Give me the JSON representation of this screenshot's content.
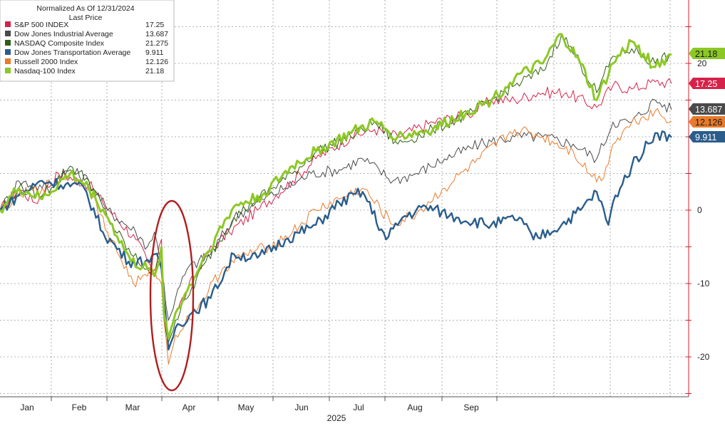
{
  "chart_data": {
    "type": "line",
    "legend": {
      "title_line1": "Normalized As Of 12/31/2024",
      "title_line2": "Last Price",
      "placement": "top-left"
    },
    "x_axis": {
      "months": [
        "Jan",
        "Feb",
        "Mar",
        "Apr",
        "May",
        "Jun",
        "Jul",
        "Aug",
        "Sep"
      ],
      "year_label": "2025"
    },
    "y_axis": {
      "ticks": [
        20,
        0,
        -10,
        -20
      ],
      "tick_labels": [
        "20",
        "0",
        "-10",
        "-20"
      ],
      "ylim": [
        -25,
        28
      ],
      "position": "right"
    },
    "grid": true,
    "highlight_annotation": {
      "shape": "ellipse",
      "color": "#b01e1e",
      "around": "early April drop"
    },
    "series": [
      {
        "name": "S&P 500 INDEX",
        "last_price": "17.25",
        "color": "#d6224a",
        "width": 1,
        "keypoints": [
          [
            0,
            0
          ],
          [
            8,
            3
          ],
          [
            15,
            1
          ],
          [
            25,
            5
          ],
          [
            38,
            3.5
          ],
          [
            44,
            1
          ],
          [
            58,
            -4
          ],
          [
            63,
            -7
          ],
          [
            66,
            -9
          ],
          [
            69,
            -4
          ],
          [
            70,
            -13
          ],
          [
            72,
            -17
          ],
          [
            75,
            -14
          ],
          [
            80,
            -11
          ],
          [
            88,
            -6
          ],
          [
            98,
            -3
          ],
          [
            110,
            0
          ],
          [
            125,
            4
          ],
          [
            135,
            7
          ],
          [
            150,
            10
          ],
          [
            160,
            11
          ],
          [
            170,
            10
          ],
          [
            185,
            12
          ],
          [
            200,
            13
          ],
          [
            210,
            15
          ],
          [
            220,
            15
          ],
          [
            230,
            16
          ],
          [
            242,
            16
          ],
          [
            255,
            14
          ],
          [
            262,
            17
          ],
          [
            270,
            16.5
          ],
          [
            280,
            17.5
          ],
          [
            287,
            17.25
          ]
        ]
      },
      {
        "name": "Dow Jones Industrial Average",
        "last_price": "13.687",
        "color": "#4a4a4a",
        "width": 1,
        "keypoints": [
          [
            0,
            0
          ],
          [
            8,
            4
          ],
          [
            18,
            3
          ],
          [
            30,
            5.5
          ],
          [
            38,
            4
          ],
          [
            46,
            0
          ],
          [
            58,
            -3
          ],
          [
            63,
            -5
          ],
          [
            66,
            -3
          ],
          [
            68,
            -6
          ],
          [
            70,
            -10
          ],
          [
            72,
            -15
          ],
          [
            75,
            -12
          ],
          [
            80,
            -8
          ],
          [
            90,
            -6
          ],
          [
            100,
            -1
          ],
          [
            112,
            1.5
          ],
          [
            122,
            3
          ],
          [
            133,
            5
          ],
          [
            145,
            5.5
          ],
          [
            155,
            7
          ],
          [
            168,
            4
          ],
          [
            178,
            5
          ],
          [
            190,
            7
          ],
          [
            205,
            9
          ],
          [
            220,
            10
          ],
          [
            232,
            10
          ],
          [
            245,
            9
          ],
          [
            255,
            7
          ],
          [
            262,
            12
          ],
          [
            270,
            12
          ],
          [
            280,
            15
          ],
          [
            287,
            13.687
          ]
        ]
      },
      {
        "name": "NASDAQ Composite Index",
        "last_price": "21.275",
        "color": "#2f5d12",
        "width": 1,
        "keypoints": [
          [
            0,
            0
          ],
          [
            8,
            3
          ],
          [
            18,
            2
          ],
          [
            30,
            6
          ],
          [
            38,
            4
          ],
          [
            46,
            -1
          ],
          [
            56,
            -6
          ],
          [
            63,
            -8
          ],
          [
            66,
            -9
          ],
          [
            69,
            -5
          ],
          [
            70,
            -14
          ],
          [
            72,
            -18
          ],
          [
            75,
            -15
          ],
          [
            80,
            -12
          ],
          [
            88,
            -7
          ],
          [
            100,
            -1
          ],
          [
            110,
            1.5
          ],
          [
            125,
            5
          ],
          [
            135,
            8
          ],
          [
            150,
            10
          ],
          [
            160,
            12
          ],
          [
            170,
            9
          ],
          [
            185,
            11
          ],
          [
            200,
            13
          ],
          [
            210,
            15
          ],
          [
            220,
            17
          ],
          [
            232,
            19
          ],
          [
            240,
            24
          ],
          [
            248,
            20
          ],
          [
            255,
            16
          ],
          [
            262,
            21
          ],
          [
            270,
            22
          ],
          [
            280,
            20
          ],
          [
            287,
            21.275
          ]
        ]
      },
      {
        "name": "Dow Jones Transportation Average",
        "last_price": "9.911",
        "color": "#2a5d8c",
        "width": 2.4,
        "keypoints": [
          [
            0,
            0
          ],
          [
            8,
            2
          ],
          [
            18,
            4
          ],
          [
            28,
            3.5
          ],
          [
            36,
            3
          ],
          [
            44,
            -3
          ],
          [
            55,
            -7
          ],
          [
            62,
            -7
          ],
          [
            66,
            -6
          ],
          [
            69,
            -8
          ],
          [
            70,
            -12
          ],
          [
            72,
            -19
          ],
          [
            75,
            -16
          ],
          [
            82,
            -14
          ],
          [
            90,
            -12
          ],
          [
            100,
            -6
          ],
          [
            110,
            -6.5
          ],
          [
            122,
            -4
          ],
          [
            135,
            -2
          ],
          [
            145,
            1
          ],
          [
            155,
            2.5
          ],
          [
            165,
            -4
          ],
          [
            172,
            -1
          ],
          [
            182,
            0.5
          ],
          [
            195,
            -1
          ],
          [
            210,
            -2
          ],
          [
            222,
            -1
          ],
          [
            228,
            -4
          ],
          [
            240,
            -2
          ],
          [
            248,
            0
          ],
          [
            255,
            2.5
          ],
          [
            260,
            -2
          ],
          [
            263,
            2
          ],
          [
            270,
            6
          ],
          [
            280,
            10.5
          ],
          [
            287,
            9.911
          ]
        ]
      },
      {
        "name": "Russell 2000 Index",
        "last_price": "12.126",
        "color": "#e87b2b",
        "width": 1,
        "keypoints": [
          [
            0,
            0
          ],
          [
            8,
            2
          ],
          [
            18,
            3
          ],
          [
            30,
            5
          ],
          [
            38,
            3
          ],
          [
            46,
            -3
          ],
          [
            57,
            -10
          ],
          [
            63,
            -9
          ],
          [
            66,
            -8
          ],
          [
            69,
            -10
          ],
          [
            70,
            -15
          ],
          [
            72,
            -21
          ],
          [
            75,
            -17
          ],
          [
            85,
            -13
          ],
          [
            95,
            -8
          ],
          [
            105,
            -6
          ],
          [
            115,
            -5
          ],
          [
            125,
            -3
          ],
          [
            135,
            0
          ],
          [
            145,
            1.5
          ],
          [
            155,
            3
          ],
          [
            168,
            -2
          ],
          [
            178,
            -0.5
          ],
          [
            190,
            3
          ],
          [
            205,
            7
          ],
          [
            220,
            11
          ],
          [
            232,
            10
          ],
          [
            245,
            8
          ],
          [
            252,
            5
          ],
          [
            257,
            4
          ],
          [
            262,
            9
          ],
          [
            270,
            12
          ],
          [
            280,
            13.5
          ],
          [
            287,
            12.126
          ]
        ]
      },
      {
        "name": "Nasdaq-100 Index",
        "last_price": "21.18",
        "color": "#8cc825",
        "width": 3,
        "keypoints": [
          [
            0,
            0
          ],
          [
            8,
            3
          ],
          [
            18,
            1.5
          ],
          [
            30,
            5
          ],
          [
            38,
            3
          ],
          [
            46,
            -1
          ],
          [
            56,
            -7
          ],
          [
            63,
            -8
          ],
          [
            66,
            -9
          ],
          [
            69,
            -5
          ],
          [
            70,
            -14
          ],
          [
            72,
            -17.5
          ],
          [
            75,
            -14
          ],
          [
            80,
            -11
          ],
          [
            88,
            -6
          ],
          [
            100,
            0.5
          ],
          [
            112,
            2
          ],
          [
            125,
            6
          ],
          [
            135,
            8
          ],
          [
            150,
            10.5
          ],
          [
            160,
            12
          ],
          [
            170,
            10
          ],
          [
            185,
            11
          ],
          [
            200,
            13.5
          ],
          [
            210,
            15
          ],
          [
            220,
            18
          ],
          [
            232,
            20
          ],
          [
            240,
            24
          ],
          [
            248,
            20
          ],
          [
            255,
            15
          ],
          [
            262,
            20
          ],
          [
            270,
            23
          ],
          [
            280,
            19.5
          ],
          [
            287,
            21.18
          ]
        ]
      }
    ],
    "last_labels_order_note": "",
    "months_day_index": [
      4,
      35,
      63,
      94,
      124,
      155,
      185,
      216,
      247
    ]
  }
}
